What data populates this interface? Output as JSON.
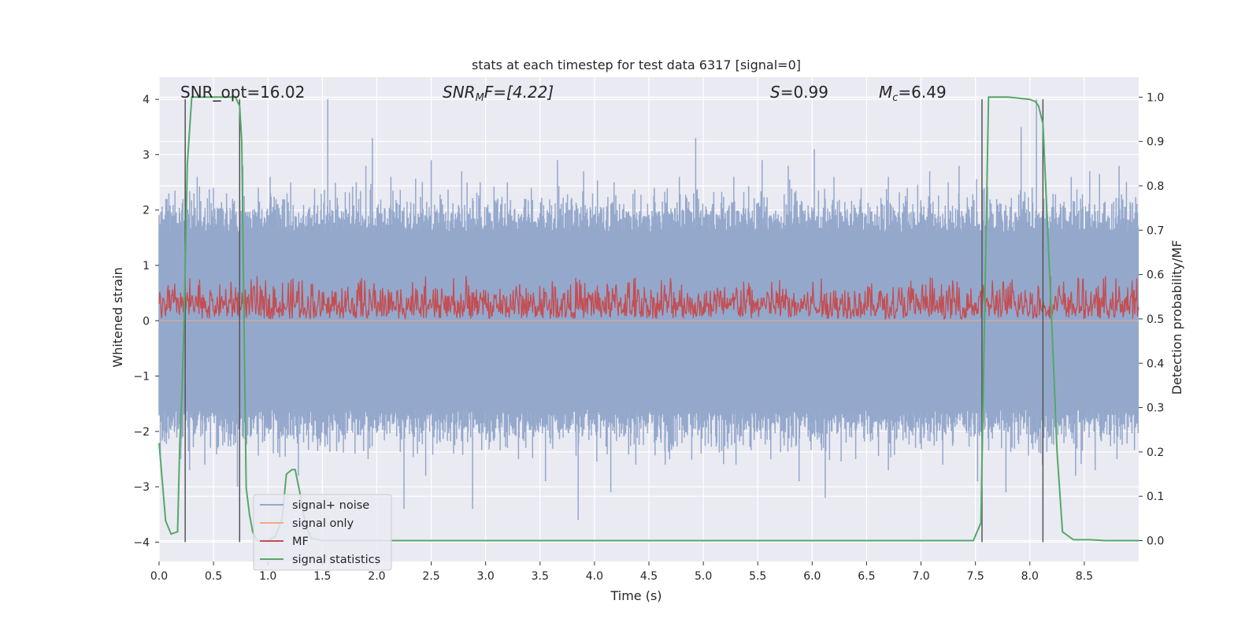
{
  "chart_data": {
    "type": "line",
    "title": "stats at each timestep for test data 6317 [signal=0]",
    "xlabel": "Time (s)",
    "ylabel_left": "Whitened strain",
    "ylabel_right": "Detection probability/MF",
    "xlim": [
      0.0,
      9.0
    ],
    "ylim_left": [
      -4.35,
      4.4
    ],
    "ylim_right": [
      -0.047,
      1.045
    ],
    "x_ticks": [
      "0.0",
      "0.5",
      "1.0",
      "1.5",
      "2.0",
      "2.5",
      "3.0",
      "3.5",
      "4.0",
      "4.5",
      "5.0",
      "5.5",
      "6.0",
      "6.5",
      "7.0",
      "7.5",
      "8.0",
      "8.5"
    ],
    "y_ticks_left": [
      "4",
      "3",
      "2",
      "1",
      "0",
      "−1",
      "−2",
      "−3",
      "−4"
    ],
    "y_ticks_right": [
      "1.0",
      "0.9",
      "0.8",
      "0.7",
      "0.6",
      "0.5",
      "0.4",
      "0.3",
      "0.2",
      "0.1",
      "0.0"
    ],
    "grid": true,
    "legend_placement": "lower-left",
    "annotations": {
      "snr_opt": "SNR_opt=16.02",
      "snr_mf_base": "SNR",
      "snr_mf_sub": "M",
      "snr_mf_rest": "F=[4.22]",
      "s_var": "S",
      "s_value": "=0.99",
      "mc_base": "M",
      "mc_sub": "c",
      "mc_value": "=6.49"
    },
    "colors": {
      "signal_noise": "#94a8cc",
      "signal_only": "#eeaa88",
      "mf": "#c44e52",
      "signal_statistics": "#55a868",
      "vlines": "#555555",
      "background": "#eaeaf2",
      "grid": "#ffffff"
    },
    "series": [
      {
        "name": "signal+ noise",
        "axis": "left",
        "envelope": {
          "typical_upper": 1.6,
          "typical_lower": -1.6,
          "max": 4.0,
          "min": -3.6
        },
        "peaks_up": [
          [
            0.09,
            2.3
          ],
          [
            0.24,
            3.2
          ],
          [
            0.35,
            2.6
          ],
          [
            0.5,
            2.4
          ],
          [
            0.62,
            2.3
          ],
          [
            0.77,
            2.8
          ],
          [
            1.02,
            2.6
          ],
          [
            1.21,
            2.5
          ],
          [
            1.55,
            4.0
          ],
          [
            1.9,
            2.8
          ],
          [
            1.96,
            3.3
          ],
          [
            2.13,
            2.6
          ],
          [
            2.5,
            2.9
          ],
          [
            2.78,
            2.7
          ],
          [
            2.95,
            2.5
          ],
          [
            3.2,
            2.5
          ],
          [
            3.42,
            2.4
          ],
          [
            3.66,
            2.9
          ],
          [
            3.9,
            2.7
          ],
          [
            4.18,
            2.5
          ],
          [
            4.55,
            2.4
          ],
          [
            4.78,
            2.6
          ],
          [
            4.93,
            3.3
          ],
          [
            5.28,
            2.6
          ],
          [
            5.54,
            2.9
          ],
          [
            5.78,
            2.8
          ],
          [
            6.02,
            3.1
          ],
          [
            6.2,
            2.6
          ],
          [
            6.45,
            2.4
          ],
          [
            6.7,
            2.6
          ],
          [
            7.08,
            2.7
          ],
          [
            7.25,
            2.5
          ],
          [
            7.35,
            2.8
          ],
          [
            7.58,
            2.4
          ],
          [
            7.92,
            3.5
          ],
          [
            8.06,
            4.0
          ],
          [
            8.38,
            2.6
          ],
          [
            8.55,
            2.7
          ],
          [
            8.82,
            2.8
          ]
        ],
        "peaks_down": [
          [
            0.12,
            -1.9
          ],
          [
            0.2,
            -2.5
          ],
          [
            0.28,
            -2.7
          ],
          [
            0.42,
            -2.6
          ],
          [
            0.72,
            -3.0
          ],
          [
            1.05,
            -2.4
          ],
          [
            1.28,
            -2.8
          ],
          [
            1.65,
            -2.2
          ],
          [
            1.92,
            -2.5
          ],
          [
            2.25,
            -3.4
          ],
          [
            2.45,
            -2.8
          ],
          [
            2.88,
            -3.4
          ],
          [
            3.2,
            -2.3
          ],
          [
            3.55,
            -2.9
          ],
          [
            3.85,
            -3.6
          ],
          [
            4.15,
            -3.1
          ],
          [
            4.38,
            -2.6
          ],
          [
            4.65,
            -2.6
          ],
          [
            4.98,
            -2.4
          ],
          [
            5.3,
            -2.6
          ],
          [
            5.62,
            -2.5
          ],
          [
            5.88,
            -2.9
          ],
          [
            6.12,
            -3.2
          ],
          [
            6.4,
            -2.5
          ],
          [
            6.7,
            -2.7
          ],
          [
            6.95,
            -2.3
          ],
          [
            7.2,
            -2.6
          ],
          [
            7.52,
            -2.9
          ],
          [
            7.78,
            -3.1
          ],
          [
            8.1,
            -2.4
          ],
          [
            8.42,
            -2.8
          ],
          [
            8.6,
            -2.7
          ],
          [
            8.8,
            -2.5
          ]
        ]
      },
      {
        "name": "signal only",
        "axis": "left",
        "x": [
          0.0,
          9.0
        ],
        "y": [
          0.0,
          0.0
        ]
      },
      {
        "name": "MF",
        "axis": "right",
        "typical_range": [
          0.5,
          0.58
        ],
        "max": 0.62,
        "min": 0.5
      },
      {
        "name": "signal statistics",
        "axis": "right",
        "x": [
          0.0,
          0.06,
          0.11,
          0.17,
          0.19,
          0.21,
          0.23,
          0.26,
          0.3,
          0.4,
          0.55,
          0.65,
          0.7,
          0.74,
          0.76,
          0.8,
          0.83,
          0.86,
          0.9,
          0.95,
          1.0,
          1.07,
          1.13,
          1.17,
          1.22,
          1.25,
          1.3,
          1.35,
          1.4,
          1.5,
          1.7,
          2.5,
          4.0,
          6.0,
          7.0,
          7.3,
          7.48,
          7.55,
          7.58,
          7.62,
          7.65,
          7.8,
          8.0,
          8.05,
          8.08,
          8.12,
          8.2,
          8.25,
          8.3,
          8.4,
          8.55,
          8.7,
          9.0
        ],
        "y": [
          0.22,
          0.045,
          0.015,
          0.02,
          0.22,
          0.33,
          0.5,
          0.85,
          1.0,
          1.0,
          1.0,
          1.0,
          1.0,
          0.98,
          0.9,
          0.12,
          0.06,
          0.02,
          0.0,
          0.0,
          0.0,
          0.01,
          0.05,
          0.15,
          0.16,
          0.16,
          0.1,
          0.03,
          0.005,
          0.0,
          0.0,
          0.0,
          0.0,
          0.0,
          0.0,
          0.0,
          0.0,
          0.04,
          0.45,
          1.0,
          1.0,
          1.0,
          0.995,
          0.99,
          0.98,
          0.94,
          0.5,
          0.2,
          0.02,
          0.002,
          0.002,
          0.0,
          0.0
        ]
      }
    ],
    "vlines_x": [
      0.24,
      0.74,
      7.56,
      8.12
    ],
    "vlines_range_left": [
      -4.0,
      4.0
    ]
  }
}
